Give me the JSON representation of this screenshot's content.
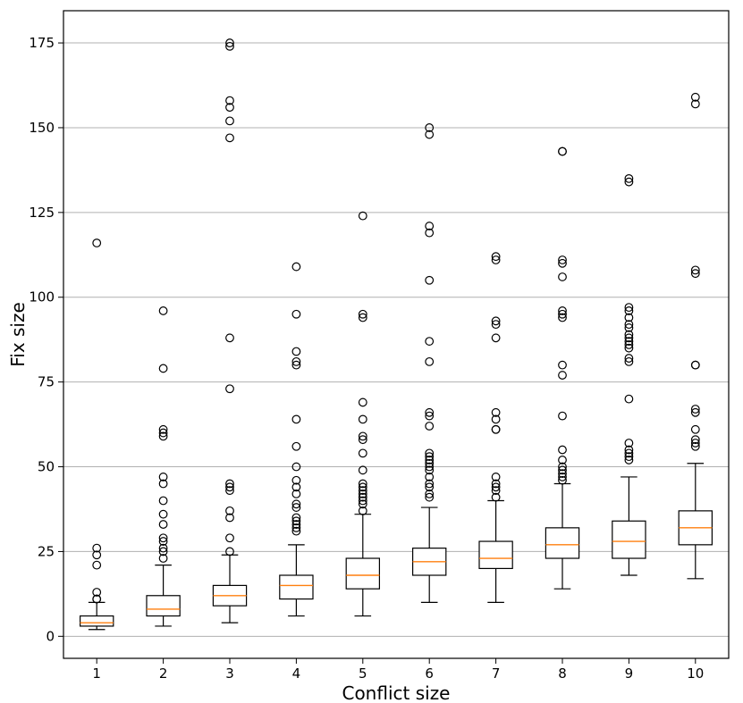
{
  "chart_data": {
    "type": "box",
    "title": "",
    "xlabel": "Conflict size",
    "ylabel": "Fix size",
    "ylim": [
      -6.5,
      184.5
    ],
    "yticks": [
      0,
      25,
      50,
      75,
      100,
      125,
      150,
      175
    ],
    "grid": "horizontal",
    "categories": [
      "1",
      "2",
      "3",
      "4",
      "5",
      "6",
      "7",
      "8",
      "9",
      "10"
    ],
    "boxes": [
      {
        "category": "1",
        "whisker_low": 2,
        "q1": 3,
        "median": 4,
        "q3": 6,
        "whisker_high": 10,
        "outliers": [
          11,
          11,
          13,
          21,
          24,
          26,
          116
        ]
      },
      {
        "category": "2",
        "whisker_low": 3,
        "q1": 6,
        "median": 8,
        "q3": 12,
        "whisker_high": 21,
        "outliers": [
          23,
          25,
          26,
          28,
          29,
          33,
          36,
          40,
          45,
          47,
          59,
          60,
          61,
          79,
          96
        ]
      },
      {
        "category": "3",
        "whisker_low": 4,
        "q1": 9,
        "median": 12,
        "q3": 15,
        "whisker_high": 24,
        "outliers": [
          25,
          29,
          35,
          37,
          43,
          44,
          45,
          73,
          88,
          147,
          152,
          156,
          158,
          174,
          175
        ]
      },
      {
        "category": "4",
        "whisker_low": 6,
        "q1": 11,
        "median": 15,
        "q3": 18,
        "whisker_high": 27,
        "outliers": [
          31,
          32,
          33,
          34,
          35,
          38,
          39,
          42,
          44,
          46,
          50,
          56,
          64,
          80,
          81,
          84,
          95,
          109
        ]
      },
      {
        "category": "5",
        "whisker_low": 6,
        "q1": 14,
        "median": 18,
        "q3": 23,
        "whisker_high": 36,
        "outliers": [
          37,
          39,
          40,
          41,
          42,
          43,
          44,
          45,
          49,
          54,
          58,
          59,
          64,
          69,
          94,
          95,
          124
        ]
      },
      {
        "category": "6",
        "whisker_low": 10,
        "q1": 18,
        "median": 22,
        "q3": 26,
        "whisker_high": 38,
        "outliers": [
          41,
          42,
          44,
          45,
          47,
          49,
          50,
          51,
          52,
          53,
          54,
          62,
          65,
          66,
          81,
          87,
          105,
          119,
          121,
          148,
          150
        ]
      },
      {
        "category": "7",
        "whisker_low": 10,
        "q1": 20,
        "median": 23,
        "q3": 28,
        "whisker_high": 40,
        "outliers": [
          41,
          43,
          44,
          45,
          47,
          61,
          61,
          64,
          66,
          88,
          92,
          93,
          111,
          112
        ]
      },
      {
        "category": "8",
        "whisker_low": 14,
        "q1": 23,
        "median": 27,
        "q3": 32,
        "whisker_high": 45,
        "outliers": [
          46,
          47,
          48,
          49,
          50,
          52,
          55,
          65,
          77,
          80,
          94,
          95,
          96,
          106,
          110,
          111,
          143,
          143
        ]
      },
      {
        "category": "9",
        "whisker_low": 18,
        "q1": 23,
        "median": 28,
        "q3": 34,
        "whisker_high": 47,
        "outliers": [
          52,
          53,
          54,
          55,
          57,
          70,
          81,
          82,
          85,
          86,
          87,
          88,
          89,
          91,
          92,
          94,
          96,
          97,
          134,
          135
        ]
      },
      {
        "category": "10",
        "whisker_low": 17,
        "q1": 27,
        "median": 32,
        "q3": 37,
        "whisker_high": 51,
        "outliers": [
          56,
          57,
          58,
          61,
          66,
          67,
          80,
          80,
          107,
          108,
          157,
          159
        ]
      }
    ],
    "colors": {
      "box": "#000000",
      "median": "#ff7f0e",
      "grid": "#b0b0b0",
      "outlier_edge": "#000000"
    }
  }
}
